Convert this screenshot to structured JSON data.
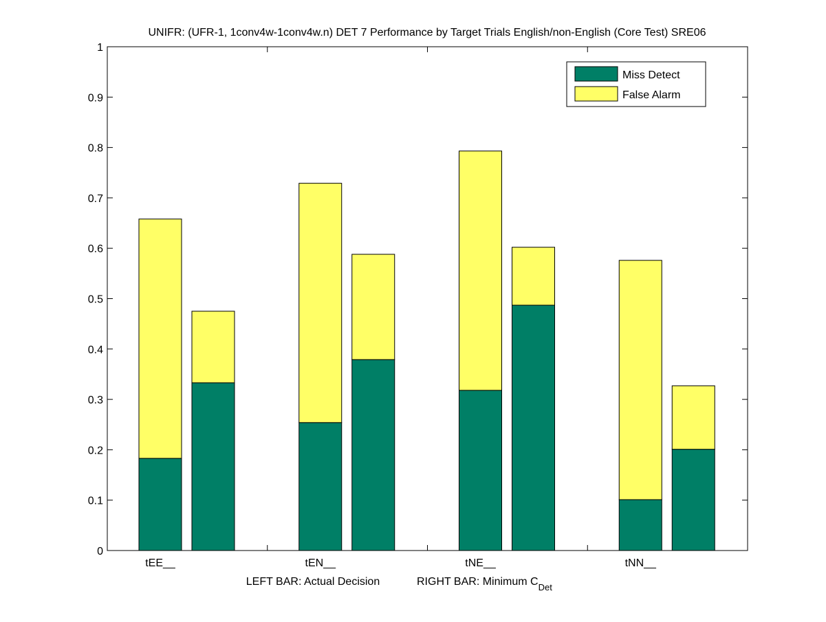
{
  "chart_data": {
    "type": "bar",
    "stacked": true,
    "title": "UNIFR: (UFR-1, 1conv4w-1conv4w.n) DET 7 Performance by Target Trials English/non-English (Core Test) SRE06",
    "xlabel_left": "LEFT BAR: Actual Decision",
    "xlabel_right_main": "RIGHT BAR: Minimum C",
    "xlabel_right_sub": "Det",
    "ylabel": "",
    "ylim": [
      0,
      1
    ],
    "yticks": [
      "0",
      "0.1",
      "0.2",
      "0.3",
      "0.4",
      "0.5",
      "0.6",
      "0.7",
      "0.8",
      "0.9",
      "1"
    ],
    "grid": false,
    "legend_position": "top-right",
    "categories": [
      "tEE__",
      "tEN__",
      "tNE__",
      "tNN__"
    ],
    "bars_per_category": [
      "Actual Decision",
      "Minimum C_Det"
    ],
    "series": [
      {
        "name": "Miss Detect",
        "color": "#007f66",
        "actual": [
          0.183,
          0.254,
          0.318,
          0.101
        ],
        "minimum": [
          0.333,
          0.379,
          0.487,
          0.201
        ]
      },
      {
        "name": "False Alarm",
        "color": "#ffff66",
        "actual": [
          0.475,
          0.475,
          0.475,
          0.475
        ],
        "minimum": [
          0.142,
          0.209,
          0.115,
          0.126
        ]
      }
    ]
  }
}
